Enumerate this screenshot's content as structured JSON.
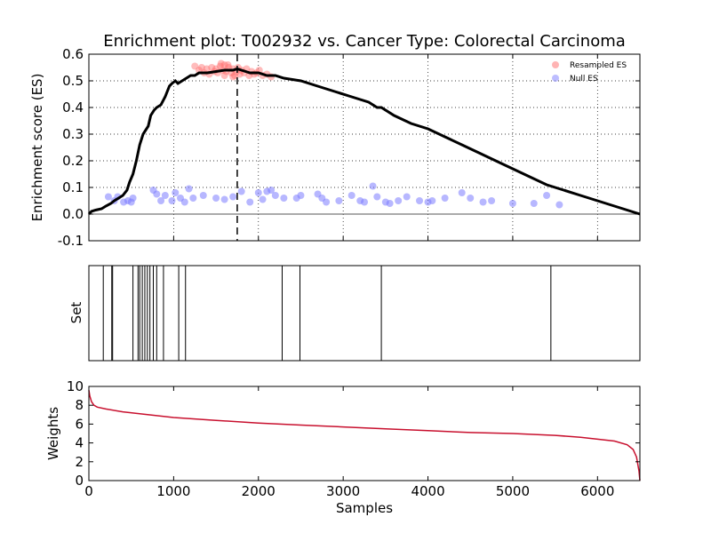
{
  "chart_data": [
    {
      "type": "line",
      "title": "Enrichment plot: T002932 vs. Cancer Type: Colorectal Carcinoma",
      "ylabel": "Enrichment score (ES)",
      "xlim": [
        0,
        6500
      ],
      "ylim": [
        -0.1,
        0.6
      ],
      "yticks": [
        -0.1,
        0.0,
        0.1,
        0.2,
        0.3,
        0.4,
        0.5,
        0.6
      ],
      "xgrid": [
        1000,
        2000,
        3000,
        4000,
        5000,
        6000
      ],
      "grid": true,
      "zero_line": 0.0,
      "peak_marker_x": 1750,
      "legend_position": "top-right",
      "series": [
        {
          "name": "",
          "color": "#000000",
          "x": [
            0,
            30,
            80,
            150,
            200,
            260,
            300,
            350,
            400,
            450,
            480,
            520,
            560,
            600,
            640,
            700,
            730,
            770,
            800,
            850,
            900,
            950,
            980,
            1020,
            1050,
            1100,
            1150,
            1200,
            1250,
            1300,
            1400,
            1500,
            1600,
            1700,
            1750,
            1800,
            1900,
            2000,
            2100,
            2200,
            2300,
            2400,
            2500,
            2700,
            2900,
            3100,
            3300,
            3400,
            3450,
            3600,
            3800,
            4000,
            4200,
            4400,
            4600,
            4800,
            5000,
            5200,
            5400,
            5600,
            5800,
            6000,
            6200,
            6350,
            6500
          ],
          "values": [
            0.0,
            0.01,
            0.015,
            0.02,
            0.03,
            0.04,
            0.05,
            0.06,
            0.07,
            0.09,
            0.12,
            0.15,
            0.2,
            0.26,
            0.3,
            0.33,
            0.37,
            0.39,
            0.4,
            0.41,
            0.44,
            0.48,
            0.49,
            0.5,
            0.49,
            0.5,
            0.51,
            0.52,
            0.52,
            0.53,
            0.53,
            0.535,
            0.54,
            0.54,
            0.545,
            0.54,
            0.53,
            0.53,
            0.52,
            0.52,
            0.51,
            0.505,
            0.5,
            0.48,
            0.46,
            0.44,
            0.42,
            0.4,
            0.4,
            0.37,
            0.34,
            0.32,
            0.29,
            0.26,
            0.23,
            0.2,
            0.17,
            0.14,
            0.11,
            0.09,
            0.07,
            0.05,
            0.03,
            0.015,
            0.0
          ]
        },
        {
          "name": "Resampled ES",
          "color": "#ff6a6a",
          "x": [
            1250,
            1300,
            1330,
            1360,
            1390,
            1420,
            1450,
            1480,
            1500,
            1520,
            1550,
            1580,
            1600,
            1620,
            1650,
            1680,
            1700,
            1720,
            1740,
            1760,
            1780,
            1800,
            1830,
            1860,
            1890,
            1920,
            1950,
            1980,
            2010,
            2050,
            2100,
            2150,
            1560,
            1640,
            1700,
            1600
          ],
          "values": [
            0.555,
            0.54,
            0.55,
            0.53,
            0.545,
            0.525,
            0.55,
            0.535,
            0.545,
            0.53,
            0.555,
            0.54,
            0.56,
            0.535,
            0.55,
            0.53,
            0.545,
            0.52,
            0.535,
            0.55,
            0.525,
            0.54,
            0.53,
            0.545,
            0.52,
            0.535,
            0.525,
            0.53,
            0.54,
            0.52,
            0.525,
            0.515,
            0.565,
            0.56,
            0.515,
            0.52
          ]
        },
        {
          "name": "Null ES",
          "color": "#7b7bff",
          "x": [
            230,
            300,
            340,
            410,
            460,
            500,
            520,
            760,
            800,
            850,
            900,
            980,
            1020,
            1080,
            1130,
            1180,
            1230,
            1350,
            1500,
            1600,
            1700,
            1800,
            1900,
            2000,
            2050,
            2100,
            2150,
            2200,
            2300,
            2450,
            2500,
            2700,
            2750,
            2800,
            2950,
            3100,
            3200,
            3250,
            3350,
            3400,
            3500,
            3550,
            3650,
            3750,
            3900,
            4000,
            4050,
            4200,
            4400,
            4500,
            4650,
            4750,
            5000,
            5250,
            5400,
            5550
          ],
          "values": [
            0.065,
            0.05,
            0.065,
            0.045,
            0.05,
            0.045,
            0.06,
            0.09,
            0.075,
            0.05,
            0.07,
            0.05,
            0.08,
            0.06,
            0.045,
            0.095,
            0.06,
            0.07,
            0.06,
            0.055,
            0.065,
            0.085,
            0.045,
            0.08,
            0.055,
            0.085,
            0.09,
            0.07,
            0.06,
            0.06,
            0.07,
            0.075,
            0.06,
            0.045,
            0.05,
            0.07,
            0.05,
            0.045,
            0.105,
            0.065,
            0.045,
            0.04,
            0.05,
            0.065,
            0.05,
            0.045,
            0.05,
            0.06,
            0.08,
            0.06,
            0.045,
            0.05,
            0.04,
            0.04,
            0.07,
            0.035
          ]
        }
      ]
    },
    {
      "type": "bar",
      "ylabel": "Set",
      "xlim": [
        0,
        6500
      ],
      "set_positions": [
        170,
        270,
        280,
        520,
        580,
        600,
        630,
        660,
        690,
        720,
        760,
        800,
        880,
        1060,
        1140,
        2280,
        2490,
        3450,
        5450
      ],
      "color": "#000000"
    },
    {
      "type": "line",
      "xlabel": "Samples",
      "ylabel": "Weights",
      "xlim": [
        0,
        6500
      ],
      "ylim": [
        0,
        10
      ],
      "xticks": [
        0,
        1000,
        2000,
        3000,
        4000,
        5000,
        6000
      ],
      "yticks": [
        0,
        2,
        4,
        6,
        8,
        10
      ],
      "series": [
        {
          "name": "",
          "color": "#c8102e",
          "x": [
            0,
            10,
            30,
            60,
            100,
            200,
            400,
            600,
            1000,
            1500,
            2000,
            2500,
            3000,
            3500,
            4000,
            4500,
            5000,
            5500,
            5800,
            6000,
            6200,
            6350,
            6420,
            6460,
            6490,
            6500
          ],
          "values": [
            9.6,
            9.0,
            8.4,
            8.0,
            7.8,
            7.6,
            7.3,
            7.1,
            6.7,
            6.4,
            6.1,
            5.9,
            5.7,
            5.5,
            5.3,
            5.1,
            5.0,
            4.8,
            4.6,
            4.4,
            4.2,
            3.8,
            3.3,
            2.5,
            1.0,
            0.0
          ]
        }
      ]
    }
  ]
}
